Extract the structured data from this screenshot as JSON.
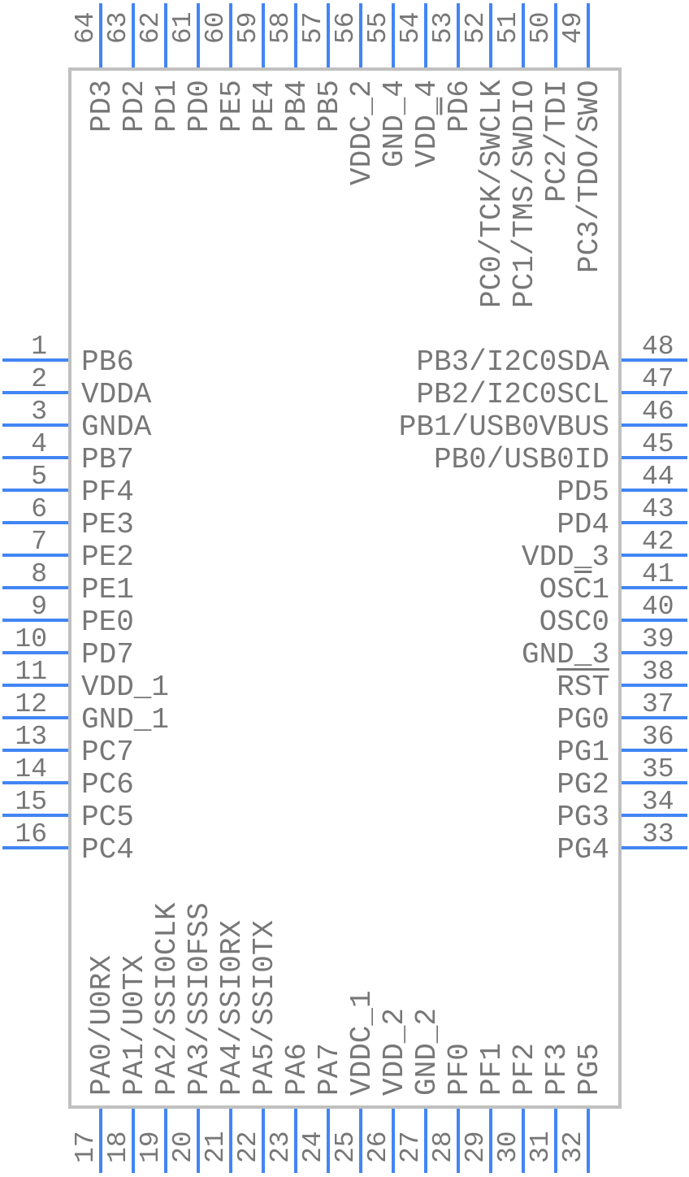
{
  "diagram": {
    "colors": {
      "pin_line": "#4285f4",
      "body_border": "#c0c0c0",
      "text": "#777777",
      "background": "#ffffff"
    },
    "pins": {
      "left": [
        {
          "num": "1",
          "label": "PB6"
        },
        {
          "num": "2",
          "label": "VDDA"
        },
        {
          "num": "3",
          "label": "GNDA"
        },
        {
          "num": "4",
          "label": "PB7"
        },
        {
          "num": "5",
          "label": "PF4"
        },
        {
          "num": "6",
          "label": "PE3"
        },
        {
          "num": "7",
          "label": "PE2"
        },
        {
          "num": "8",
          "label": "PE1"
        },
        {
          "num": "9",
          "label": "PE0"
        },
        {
          "num": "10",
          "label": "PD7"
        },
        {
          "num": "11",
          "label": "VDD_1"
        },
        {
          "num": "12",
          "label": "GND_1"
        },
        {
          "num": "13",
          "label": "PC7"
        },
        {
          "num": "14",
          "label": "PC6"
        },
        {
          "num": "15",
          "label": "PC5"
        },
        {
          "num": "16",
          "label": "PC4"
        }
      ],
      "right": [
        {
          "num": "48",
          "label": "PB3/I2C0SDA"
        },
        {
          "num": "47",
          "label": "PB2/I2C0SCL"
        },
        {
          "num": "46",
          "label": "PB1/USB0VBUS"
        },
        {
          "num": "45",
          "label": "PB0/USB0ID"
        },
        {
          "num": "44",
          "label": "PD5"
        },
        {
          "num": "43",
          "label": "PD4"
        },
        {
          "num": "42",
          "label": "VDD_3"
        },
        {
          "num": "41",
          "label": "OSC1",
          "overline": "C"
        },
        {
          "num": "40",
          "label": "OSC0"
        },
        {
          "num": "39",
          "label": "GND_3"
        },
        {
          "num": "38",
          "label": "RST",
          "overline": "RST"
        },
        {
          "num": "37",
          "label": "PG0"
        },
        {
          "num": "36",
          "label": "PG1"
        },
        {
          "num": "35",
          "label": "PG2"
        },
        {
          "num": "34",
          "label": "PG3"
        },
        {
          "num": "33",
          "label": "PG4"
        }
      ],
      "top": [
        {
          "num": "64",
          "label": "PD3"
        },
        {
          "num": "63",
          "label": "PD2"
        },
        {
          "num": "62",
          "label": "PD1"
        },
        {
          "num": "61",
          "label": "PD0"
        },
        {
          "num": "60",
          "label": "PE5"
        },
        {
          "num": "59",
          "label": "PE4"
        },
        {
          "num": "58",
          "label": "PB4"
        },
        {
          "num": "57",
          "label": "PB5"
        },
        {
          "num": "56",
          "label": "VDDC_2"
        },
        {
          "num": "55",
          "label": "GND_4"
        },
        {
          "num": "54",
          "label": "VDD_4"
        },
        {
          "num": "53",
          "label": "PD6",
          "overline": "D"
        },
        {
          "num": "52",
          "label": "PC0/TCK/SWCLK"
        },
        {
          "num": "51",
          "label": "PC1/TMS/SWDIO"
        },
        {
          "num": "50",
          "label": "PC2/TDI"
        },
        {
          "num": "49",
          "label": "PC3/TDO/SWO"
        }
      ],
      "bottom": [
        {
          "num": "17",
          "label": "PA0/U0RX"
        },
        {
          "num": "18",
          "label": "PA1/U0TX"
        },
        {
          "num": "19",
          "label": "PA2/SSI0CLK"
        },
        {
          "num": "20",
          "label": "PA3/SSI0FSS"
        },
        {
          "num": "21",
          "label": "PA4/SSI0RX"
        },
        {
          "num": "22",
          "label": "PA5/SSI0TX"
        },
        {
          "num": "23",
          "label": "PA6"
        },
        {
          "num": "24",
          "label": "PA7"
        },
        {
          "num": "25",
          "label": "VDDC_1"
        },
        {
          "num": "26",
          "label": "VDD_2"
        },
        {
          "num": "27",
          "label": "GND_2"
        },
        {
          "num": "28",
          "label": "PF0"
        },
        {
          "num": "29",
          "label": "PF1"
        },
        {
          "num": "30",
          "label": "PF2"
        },
        {
          "num": "31",
          "label": "PF3"
        },
        {
          "num": "32",
          "label": "PG5"
        }
      ]
    }
  }
}
